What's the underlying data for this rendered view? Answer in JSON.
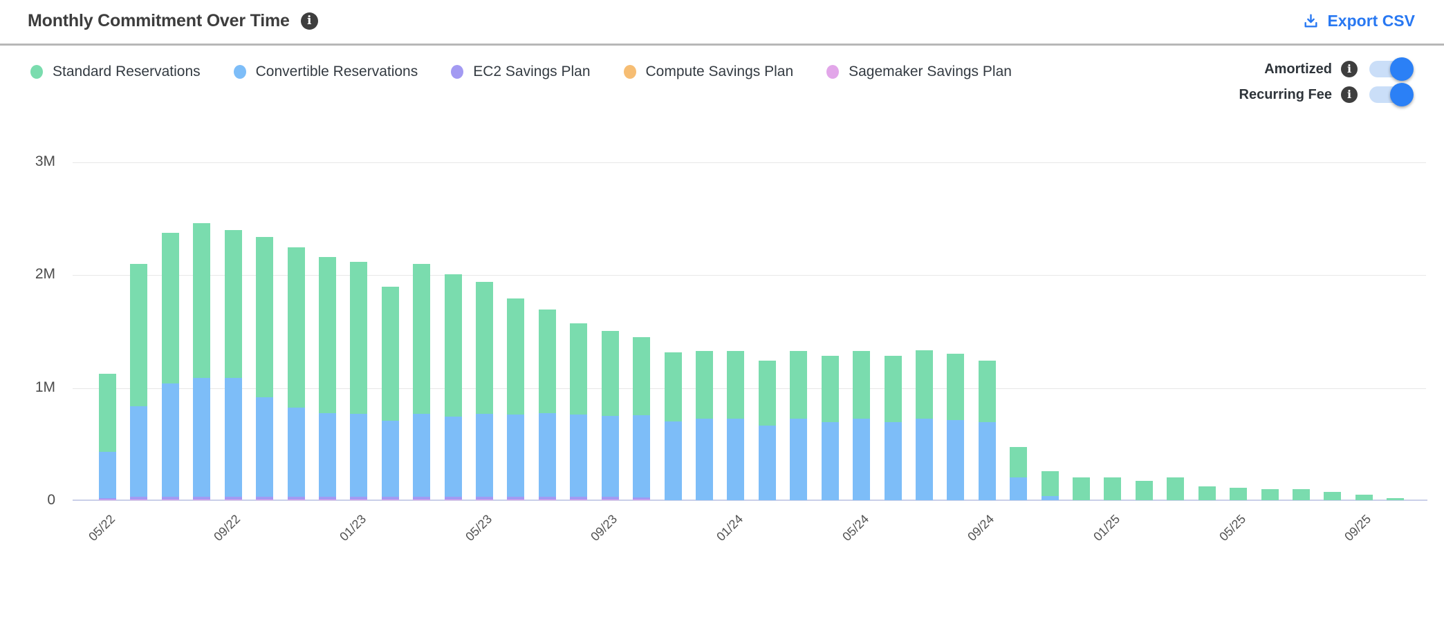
{
  "header": {
    "title": "Monthly Commitment Over Time",
    "info_icon": "i",
    "export_label": "Export CSV"
  },
  "toggles": [
    {
      "label": "Amortized",
      "state": "on"
    },
    {
      "label": "Recurring Fee",
      "state": "on"
    }
  ],
  "colors": {
    "accent_blue": "#2878f2",
    "toggle_track": "#cadef8",
    "toggle_knob": "#2b80f6",
    "gridline": "#e7e7e7",
    "x_axis_line": "#c9cfe8"
  },
  "chart_data": {
    "type": "bar",
    "stacked": true,
    "title": "Monthly Commitment Over Time",
    "xlabel": "",
    "ylabel": "",
    "ylim": [
      0,
      3000000
    ],
    "y_ticks": [
      {
        "label": "3M",
        "value": 3
      },
      {
        "label": "2M",
        "value": 2
      },
      {
        "label": "1M",
        "value": 1
      },
      {
        "label": "0",
        "value": 0
      }
    ],
    "x_tick_every": 4,
    "legend_position": "top-left",
    "grid": true,
    "unit": "millions",
    "categories": [
      "05/22",
      "06/22",
      "07/22",
      "08/22",
      "09/22",
      "10/22",
      "11/22",
      "12/22",
      "01/23",
      "02/23",
      "03/23",
      "04/23",
      "05/23",
      "06/23",
      "07/23",
      "08/23",
      "09/23",
      "10/23",
      "11/23",
      "12/23",
      "01/24",
      "02/24",
      "03/24",
      "04/24",
      "05/24",
      "06/24",
      "07/24",
      "08/24",
      "09/24",
      "10/24",
      "11/24",
      "12/24",
      "01/25",
      "02/25",
      "03/25",
      "04/25",
      "05/25",
      "06/25",
      "07/25",
      "08/25",
      "09/25",
      "10/25"
    ],
    "series": [
      {
        "name": "Standard Reservations",
        "color": "#7adcae",
        "stack_order": 5,
        "values": [
          0.69,
          1.26,
          1.34,
          1.37,
          1.31,
          1.42,
          1.42,
          1.38,
          1.35,
          1.19,
          1.33,
          1.26,
          1.17,
          1.03,
          0.92,
          0.81,
          0.75,
          0.69,
          0.61,
          0.6,
          0.6,
          0.58,
          0.6,
          0.59,
          0.6,
          0.59,
          0.61,
          0.59,
          0.55,
          0.27,
          0.22,
          0.2,
          0.2,
          0.17,
          0.2,
          0.12,
          0.11,
          0.1,
          0.1,
          0.075,
          0.05,
          0.018
        ]
      },
      {
        "name": "Convertible Reservations",
        "color": "#7dbdf8",
        "stack_order": 4,
        "values": [
          0.41,
          0.8,
          1.0,
          1.05,
          1.05,
          0.88,
          0.79,
          0.74,
          0.73,
          0.67,
          0.73,
          0.71,
          0.73,
          0.73,
          0.74,
          0.73,
          0.72,
          0.73,
          0.7,
          0.72,
          0.72,
          0.66,
          0.72,
          0.69,
          0.72,
          0.69,
          0.72,
          0.71,
          0.69,
          0.2,
          0.04,
          0,
          0,
          0,
          0,
          0,
          0,
          0,
          0,
          0,
          0,
          0
        ]
      },
      {
        "name": "EC2 Savings Plan",
        "color": "#a39af2",
        "stack_order": 3,
        "values": [
          0.015,
          0.025,
          0.025,
          0.025,
          0.025,
          0.025,
          0.025,
          0.025,
          0.025,
          0.025,
          0.025,
          0.025,
          0.025,
          0.022,
          0.022,
          0.022,
          0.022,
          0.018,
          0,
          0,
          0,
          0,
          0,
          0,
          0,
          0,
          0,
          0,
          0,
          0,
          0,
          0,
          0,
          0,
          0,
          0,
          0,
          0,
          0,
          0,
          0,
          0
        ]
      },
      {
        "name": "Compute Savings Plan",
        "color": "#f6bd73",
        "stack_order": 2,
        "values": [
          0,
          0,
          0,
          0,
          0,
          0,
          0,
          0,
          0,
          0,
          0,
          0,
          0,
          0,
          0,
          0,
          0,
          0,
          0,
          0,
          0,
          0,
          0,
          0,
          0,
          0,
          0,
          0,
          0,
          0,
          0,
          0,
          0,
          0,
          0,
          0,
          0,
          0,
          0,
          0,
          0,
          0
        ]
      },
      {
        "name": "Sagemaker Savings Plan",
        "color": "#e2a6e9",
        "stack_order": 1,
        "values": [
          0.005,
          0.008,
          0.008,
          0.008,
          0.008,
          0.008,
          0.008,
          0.008,
          0.008,
          0.008,
          0.008,
          0.008,
          0.008,
          0.008,
          0.008,
          0.008,
          0.008,
          0.008,
          0,
          0,
          0,
          0,
          0,
          0,
          0,
          0,
          0,
          0,
          0,
          0,
          0,
          0,
          0,
          0,
          0,
          0,
          0,
          0,
          0,
          0,
          0,
          0
        ]
      }
    ]
  }
}
